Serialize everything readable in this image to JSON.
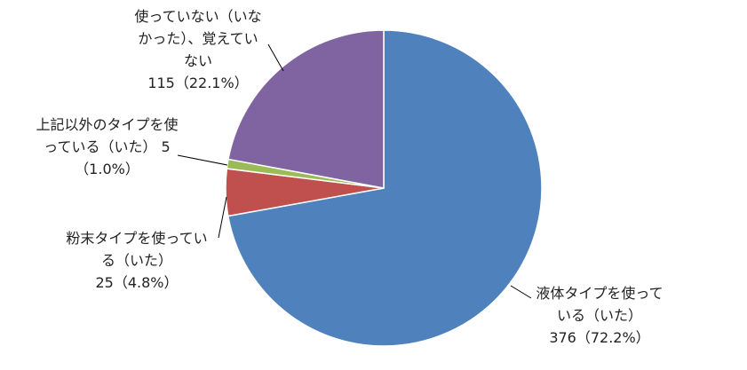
{
  "chart_data": {
    "type": "pie",
    "categories": [
      "液体タイプを使っている（いた）",
      "粉末タイプを使っている（いた）",
      "上記以外のタイプを使っている（いた）",
      "使っていない（いなかった）、覚えていない"
    ],
    "values": [
      376,
      25,
      5,
      115
    ],
    "value_labels": [
      "376（72.2%）",
      "25（4.8%）",
      "5（1.0%）",
      "115（22.1%）"
    ],
    "colors": [
      "#4f81bd",
      "#c0504d",
      "#9bbb59",
      "#8064a2"
    ]
  }
}
